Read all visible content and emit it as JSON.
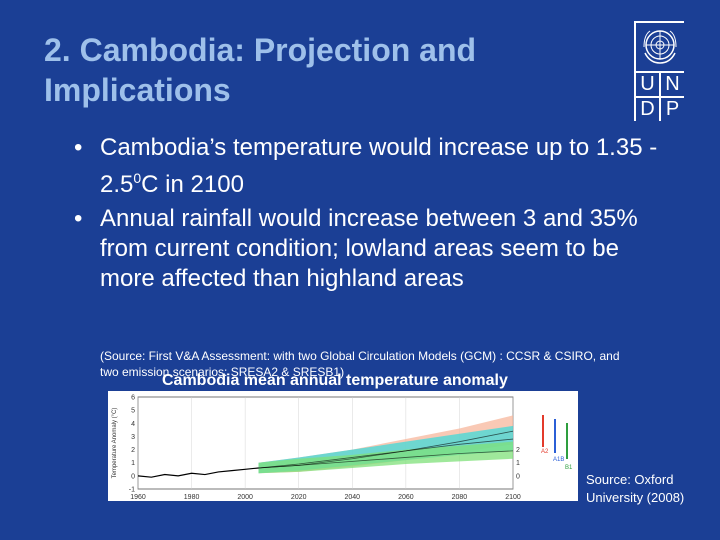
{
  "slide": {
    "title": "2. Cambodia: Projection and Implications",
    "logo": {
      "row1_left": "U",
      "row1_right": "N",
      "row2_left": "D",
      "row2_right": "P"
    },
    "bullets": [
      {
        "marker": "•",
        "text": "Cambodia’s temperature would increase up to 1.35 - 2.5",
        "sup": "0",
        "tail": "C in 2100"
      },
      {
        "marker": "•",
        "text": "Annual rainfall would increase between 3 and 35% from current condition; lowland areas seem to be more affected than highland areas",
        "sup": "",
        "tail": ""
      }
    ],
    "source_note": "(Source: First V&A Assessment: with two Global Circulation Models (GCM) : CCSR & CSIRO, and two emission scenarios: SRESA2 & SRESB1)",
    "chart_caption": "Cambodia mean annual temperature anomaly",
    "image_source": "Source: Oxford University (2008)"
  },
  "chart_data": {
    "type": "line",
    "title": "Cambodia mean annual temperature anomaly",
    "ylabel": "Temperature Anomaly (°C)",
    "x_ticks": [
      "1960",
      "1980",
      "2000",
      "2020",
      "2040",
      "2060",
      "2080",
      "2100"
    ],
    "y_ticks": [
      "6",
      "5",
      "4",
      "3",
      "2",
      "1",
      "0",
      "-1"
    ],
    "right_ticks": [
      "2",
      "1",
      "0"
    ],
    "ylim": [
      -1,
      6
    ],
    "legend": [
      "A2",
      "A1B",
      "B1"
    ],
    "colors": {
      "A2": "#e33a2b",
      "A1B": "#2b5fd6",
      "B1": "#2e9e3f",
      "observed": "#000000",
      "band_a2": "#f7b79c",
      "band_a1b": "#3fd9d9",
      "band_b1": "#7fe07a"
    },
    "observed": {
      "x": [
        1960,
        1965,
        1970,
        1975,
        1980,
        1985,
        1990,
        1995,
        2000,
        2005
      ],
      "y": [
        0.0,
        -0.1,
        0.1,
        0.0,
        0.2,
        0.1,
        0.3,
        0.4,
        0.5,
        0.6
      ]
    },
    "series": [
      {
        "name": "A2",
        "x": [
          2005,
          2020,
          2040,
          2060,
          2080,
          2100
        ],
        "y": [
          0.6,
          0.8,
          1.3,
          1.9,
          2.6,
          3.4
        ]
      },
      {
        "name": "A1B",
        "x": [
          2005,
          2020,
          2040,
          2060,
          2080,
          2100
        ],
        "y": [
          0.6,
          0.9,
          1.4,
          1.9,
          2.4,
          2.8
        ]
      },
      {
        "name": "B1",
        "x": [
          2005,
          2020,
          2040,
          2060,
          2080,
          2100
        ],
        "y": [
          0.6,
          0.8,
          1.1,
          1.4,
          1.7,
          1.9
        ]
      }
    ],
    "bands": [
      {
        "name": "A2",
        "x": [
          2005,
          2020,
          2040,
          2060,
          2080,
          2100
        ],
        "lo": [
          0.2,
          0.3,
          0.7,
          1.2,
          1.8,
          2.4
        ],
        "hi": [
          1.0,
          1.4,
          2.0,
          2.8,
          3.6,
          4.6
        ]
      },
      {
        "name": "A1B",
        "x": [
          2005,
          2020,
          2040,
          2060,
          2080,
          2100
        ],
        "lo": [
          0.2,
          0.4,
          0.8,
          1.2,
          1.6,
          1.9
        ],
        "hi": [
          1.0,
          1.4,
          2.0,
          2.6,
          3.2,
          3.8
        ]
      },
      {
        "name": "B1",
        "x": [
          2005,
          2020,
          2040,
          2060,
          2080,
          2100
        ],
        "lo": [
          0.2,
          0.3,
          0.6,
          0.9,
          1.1,
          1.3
        ],
        "hi": [
          1.0,
          1.3,
          1.6,
          2.0,
          2.3,
          2.6
        ]
      }
    ],
    "grid": true
  }
}
